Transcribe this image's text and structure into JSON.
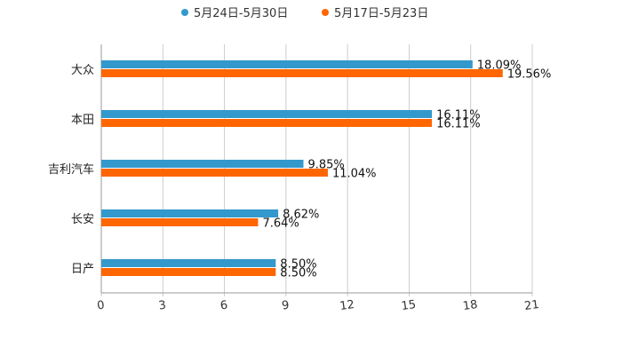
{
  "chart_data": {
    "type": "bar",
    "orientation": "horizontal",
    "title": "",
    "xlabel": "",
    "ylabel": "",
    "categories": [
      "大众",
      "本田",
      "吉利汽车",
      "长安",
      "日产"
    ],
    "series": [
      {
        "name": "5月24日-5月30日",
        "color": "#3399cc",
        "values": [
          18.09,
          16.11,
          9.85,
          8.62,
          8.5
        ],
        "labels": [
          "18.09%",
          "16.11%",
          "9.85%",
          "8.62%",
          "8.50%"
        ]
      },
      {
        "name": "5月17日-5月23日",
        "color": "#ff6600",
        "values": [
          19.56,
          16.11,
          11.04,
          7.64,
          8.5
        ],
        "labels": [
          "19.56%",
          "16.11%",
          "11.04%",
          "7.64%",
          "8.50%"
        ]
      }
    ],
    "xlim": [
      0,
      21
    ],
    "xticks": [
      0,
      3,
      6,
      9,
      12,
      15,
      18,
      21
    ],
    "xtick_labels": [
      "0",
      "3",
      "6",
      "9",
      "12",
      "15",
      "18",
      "21"
    ],
    "grid": true,
    "legend_position": "top-center"
  }
}
